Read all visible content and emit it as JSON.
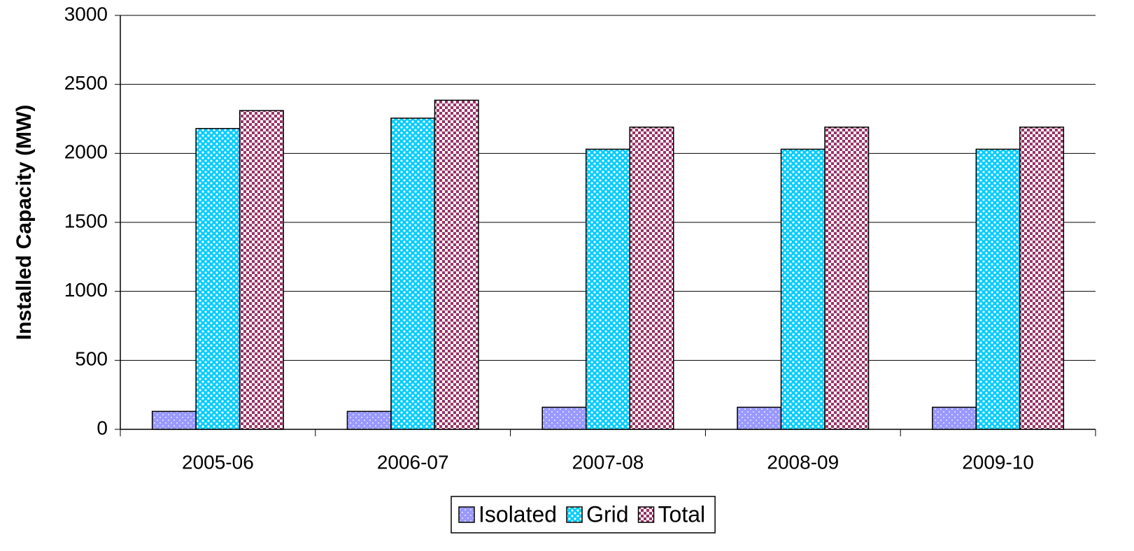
{
  "chart_data": {
    "type": "bar",
    "y_label": "Installed Capacity (MW)",
    "categories": [
      "2005-06",
      "2006-07",
      "2007-08",
      "2008-09",
      "2009-10"
    ],
    "series": [
      {
        "name": "Isolated",
        "color": "#9999ff",
        "values": [
          130,
          130,
          160,
          160,
          160
        ]
      },
      {
        "name": "Grid",
        "color": "#00ccff",
        "values": [
          2180,
          2255,
          2030,
          2030,
          2030
        ]
      },
      {
        "name": "Total",
        "color": "#993366",
        "values": [
          2310,
          2385,
          2190,
          2190,
          2190
        ]
      }
    ],
    "ylim": [
      0,
      3000
    ],
    "yticks": [
      0,
      500,
      1000,
      1500,
      2000,
      2500,
      3000
    ],
    "grid": true,
    "legend": "bottom"
  }
}
